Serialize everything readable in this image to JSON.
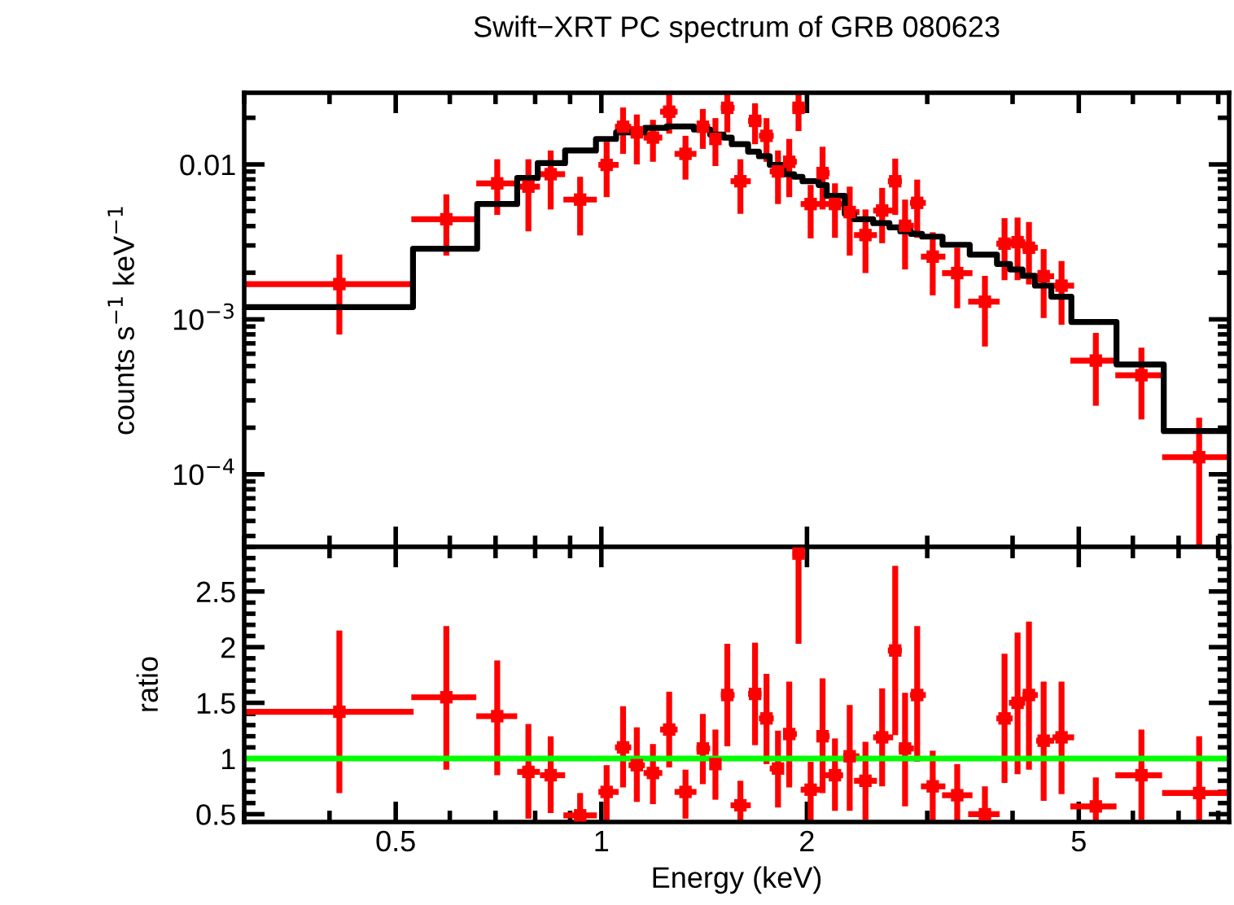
{
  "chart_data": [
    {
      "type": "scatter",
      "title": "Swift−XRT PC spectrum of GRB 080623",
      "ylabel": "counts s$^{−1}$ keV$^{−1}$",
      "log": "xy",
      "xlim": [
        0.3,
        8.3
      ],
      "ylim": [
        3.4e-05,
        0.029
      ],
      "xticks": [
        0.5,
        1,
        2,
        5
      ],
      "yticks": [
        {
          "value": 0.0001,
          "label": "10$^{−4}$"
        },
        {
          "value": 0.001,
          "label": "10$^{−3}$"
        },
        0.01
      ],
      "tick_labels": "y",
      "series": [
        {
          "color": "#ff0000",
          "marker": "square",
          "x": [
            0.4135,
            0.593,
            0.704,
            0.782,
            0.843,
            0.931,
            1.018,
            1.076,
            1.127,
            1.19,
            1.257,
            1.328,
            1.408,
            1.469,
            1.529,
            1.598,
            1.679,
            1.745,
            1.814,
            1.884,
            1.944,
            2.025,
            2.108,
            2.198,
            2.31,
            2.436,
            2.577,
            2.693,
            2.784,
            2.9,
            3.056,
            3.319,
            3.644,
            3.893,
            4.068,
            4.227,
            4.442,
            4.718,
            5.296,
            6.176,
            7.503
          ],
          "values": [
            0.00169,
            0.00443,
            0.00755,
            0.00719,
            0.00865,
            0.00593,
            0.00993,
            0.0175,
            0.0161,
            0.0149,
            0.0219,
            0.0117,
            0.0175,
            0.0146,
            0.0232,
            0.00779,
            0.0191,
            0.0153,
            0.00901,
            0.0104,
            0.0232,
            0.00555,
            0.00879,
            0.00555,
            0.00492,
            0.0035,
            0.00504,
            0.00779,
            0.00402,
            0.00565,
            0.00254,
            0.00199,
            0.0013,
            0.00308,
            0.00315,
            0.0029,
            0.0019,
            0.00165,
            0.000542,
            0.000436,
            0.000129
          ],
          "errors": [
            [
              0.000798,
              0.00262
            ],
            [
              0.00258,
              0.00641
            ],
            [
              0.00472,
              0.0108
            ],
            [
              0.0037,
              0.0108
            ],
            [
              0.00512,
              0.0123
            ],
            [
              0.00348,
              0.00832
            ],
            [
              0.00615,
              0.014
            ],
            [
              0.0117,
              0.0233
            ],
            [
              0.01,
              0.021
            ],
            [
              0.0104,
              0.0194
            ],
            [
              0.0158,
              0.0284
            ],
            [
              0.00798,
              0.0153
            ],
            [
              0.0126,
              0.0228
            ],
            [
              0.00976,
              0.0199
            ],
            [
              0.0161,
              0.029
            ],
            [
              0.0048,
              0.0108
            ],
            [
              0.0135,
              0.0248
            ],
            [
              0.0104,
              0.0199
            ],
            [
              0.00555,
              0.0123
            ],
            [
              0.00615,
              0.0146
            ],
            [
              0.0164,
              0.029
            ],
            [
              0.00333,
              0.00737
            ],
            [
              0.00512,
              0.013
            ],
            [
              0.00336,
              0.00755
            ],
            [
              0.00258,
              0.00719
            ],
            [
              0.00199,
              0.00512
            ],
            [
              0.0031,
              0.00706
            ],
            [
              0.00472,
              0.0109
            ],
            [
              0.0021,
              0.00593
            ],
            [
              0.00336,
              0.00798
            ],
            [
              0.00143,
              0.00365
            ],
            [
              0.00118,
              0.0029
            ],
            [
              0.000668,
              0.00191
            ],
            [
              0.00179,
              0.0045
            ],
            [
              0.00179,
              0.00454
            ],
            [
              0.00168,
              0.00425
            ],
            [
              0.00102,
              0.00284
            ],
            [
              0.000923,
              0.00238
            ],
            [
              0.000277,
              0.000818
            ],
            [
              0.000226,
              0.000657
            ],
            [
              3.4e-05,
              0.000232
            ]
          ],
          "xerrors": [
            [
              0.3,
              0.531
            ],
            [
              0.527,
              0.656
            ],
            [
              0.656,
              0.753
            ],
            [
              0.753,
              0.813
            ],
            [
              0.813,
              0.885
            ],
            [
              0.88,
              0.985
            ],
            [
              0.99,
              1.06
            ],
            [
              1.047,
              1.106
            ],
            [
              1.096,
              1.158
            ],
            [
              1.153,
              1.228
            ],
            [
              1.219,
              1.293
            ],
            [
              1.28,
              1.378
            ],
            [
              1.378,
              1.443
            ],
            [
              1.443,
              1.496
            ],
            [
              1.496,
              1.567
            ],
            [
              1.546,
              1.655
            ],
            [
              1.64,
              1.716
            ],
            [
              1.701,
              1.788
            ],
            [
              1.764,
              1.848
            ],
            [
              1.848,
              1.933
            ],
            [
              1.905,
              1.988
            ],
            [
              1.958,
              2.1
            ],
            [
              2.069,
              2.159
            ],
            [
              2.12,
              2.259
            ],
            [
              2.259,
              2.387
            ],
            [
              2.344,
              2.532
            ],
            [
              2.5,
              2.674
            ],
            [
              2.627,
              2.754
            ],
            [
              2.724,
              2.868
            ],
            [
              2.831,
              2.986
            ],
            [
              2.937,
              3.189
            ],
            [
              3.154,
              3.494
            ],
            [
              3.444,
              3.829
            ],
            [
              3.787,
              4.001
            ],
            [
              3.951,
              4.174
            ],
            [
              4.136,
              4.355
            ],
            [
              4.331,
              4.601
            ],
            [
              4.575,
              4.922
            ],
            [
              4.86,
              5.678
            ],
            [
              5.656,
              6.622
            ],
            [
              6.622,
              8.3
            ]
          ]
        },
        {
          "type": "step",
          "color": "#000000",
          "x": [
            0.3,
            0.53,
            0.658,
            0.753,
            0.807,
            0.885,
            0.982,
            1.051,
            1.158,
            1.246,
            1.366,
            1.443,
            1.51,
            1.552,
            1.64,
            1.701,
            1.764,
            1.848,
            1.916,
            1.97,
            2.08,
            2.138,
            2.272,
            2.344,
            2.5,
            2.641,
            2.739,
            2.841,
            2.948,
            3.159,
            3.462,
            3.795,
            3.966,
            4.136,
            4.314,
            4.558,
            4.877,
            5.678,
            6.659,
            8.3
          ],
          "values": [
            0.0012,
            0.00286,
            0.00555,
            0.00818,
            0.0102,
            0.0123,
            0.0146,
            0.0161,
            0.0172,
            0.0176,
            0.0168,
            0.0156,
            0.0149,
            0.0135,
            0.0121,
            0.0113,
            0.00993,
            0.00865,
            0.00832,
            0.00779,
            0.00737,
            0.00627,
            0.0048,
            0.00443,
            0.00418,
            0.00392,
            0.0037,
            0.00356,
            0.00342,
            0.00303,
            0.00262,
            0.00228,
            0.0021,
            0.00191,
            0.00165,
            0.0014,
            0.000962,
            0.000512,
            0.00019,
            0.00019
          ]
        }
      ]
    },
    {
      "type": "scatter",
      "ylabel": "ratio",
      "xlabel": "Energy (keV)",
      "log": "x",
      "xlim": [
        0.3,
        8.3
      ],
      "ylim": [
        0.43,
        2.9
      ],
      "xticks": [
        0.5,
        1,
        2,
        5
      ],
      "yticks": [
        0.5,
        1,
        1.5,
        2,
        2.5
      ],
      "ref_lines": [
        {
          "axis": "y",
          "value": 1,
          "color": "#00ff00"
        }
      ],
      "series": [
        {
          "color": "#ff0000",
          "marker": "square",
          "x": [
            0.4135,
            0.593,
            0.704,
            0.782,
            0.843,
            0.931,
            1.018,
            1.076,
            1.127,
            1.19,
            1.257,
            1.328,
            1.408,
            1.469,
            1.529,
            1.598,
            1.679,
            1.745,
            1.814,
            1.884,
            1.944,
            2.025,
            2.108,
            2.198,
            2.31,
            2.436,
            2.577,
            2.693,
            2.784,
            2.9,
            3.056,
            3.319,
            3.644,
            3.893,
            4.068,
            4.227,
            4.442,
            4.718,
            5.296,
            6.176,
            7.503
          ],
          "values": [
            1.42,
            1.55,
            1.38,
            0.88,
            0.85,
            0.49,
            0.7,
            1.1,
            0.94,
            0.87,
            1.26,
            0.7,
            1.09,
            0.95,
            1.57,
            0.58,
            1.58,
            1.36,
            0.91,
            1.22,
            2.84,
            0.72,
            1.2,
            0.85,
            1.02,
            0.8,
            1.19,
            1.97,
            1.09,
            1.57,
            0.75,
            0.67,
            0.5,
            1.36,
            1.5,
            1.57,
            1.16,
            1.19,
            0.57,
            0.85,
            0.69
          ],
          "errors": [
            [
              0.69,
              2.15
            ],
            [
              0.9,
              2.19
            ],
            [
              0.85,
              1.88
            ],
            [
              0.46,
              1.31
            ],
            [
              0.51,
              1.2
            ],
            [
              0.43,
              0.69
            ],
            [
              0.43,
              0.94
            ],
            [
              0.74,
              1.47
            ],
            [
              0.61,
              1.28
            ],
            [
              0.59,
              1.13
            ],
            [
              0.92,
              1.6
            ],
            [
              0.46,
              0.9
            ],
            [
              0.77,
              1.4
            ],
            [
              0.63,
              1.26
            ],
            [
              1.11,
              2.03
            ],
            [
              0.43,
              0.8
            ],
            [
              1.12,
              2.04
            ],
            [
              0.95,
              1.76
            ],
            [
              0.56,
              1.25
            ],
            [
              0.74,
              1.69
            ],
            [
              2.03,
              2.9
            ],
            [
              0.43,
              0.97
            ],
            [
              0.69,
              1.72
            ],
            [
              0.53,
              1.18
            ],
            [
              0.53,
              1.48
            ],
            [
              0.45,
              1.15
            ],
            [
              0.75,
              1.63
            ],
            [
              1.21,
              2.73
            ],
            [
              0.57,
              1.59
            ],
            [
              0.97,
              2.19
            ],
            [
              0.43,
              1.07
            ],
            [
              0.43,
              0.95
            ],
            [
              0.43,
              0.75
            ],
            [
              0.78,
              1.94
            ],
            [
              0.86,
              2.13
            ],
            [
              0.9,
              2.23
            ],
            [
              0.62,
              1.69
            ],
            [
              0.68,
              1.69
            ],
            [
              0.43,
              0.83
            ],
            [
              0.45,
              1.26
            ],
            [
              0.43,
              1.2
            ]
          ],
          "xerrors": [
            [
              0.3,
              0.531
            ],
            [
              0.527,
              0.656
            ],
            [
              0.656,
              0.753
            ],
            [
              0.753,
              0.813
            ],
            [
              0.813,
              0.885
            ],
            [
              0.88,
              0.985
            ],
            [
              0.99,
              1.06
            ],
            [
              1.047,
              1.106
            ],
            [
              1.096,
              1.158
            ],
            [
              1.153,
              1.228
            ],
            [
              1.219,
              1.293
            ],
            [
              1.28,
              1.378
            ],
            [
              1.378,
              1.443
            ],
            [
              1.443,
              1.496
            ],
            [
              1.496,
              1.567
            ],
            [
              1.546,
              1.655
            ],
            [
              1.64,
              1.716
            ],
            [
              1.701,
              1.788
            ],
            [
              1.764,
              1.848
            ],
            [
              1.848,
              1.933
            ],
            [
              1.905,
              1.988
            ],
            [
              1.958,
              2.1
            ],
            [
              2.069,
              2.159
            ],
            [
              2.12,
              2.259
            ],
            [
              2.259,
              2.387
            ],
            [
              2.344,
              2.532
            ],
            [
              2.5,
              2.674
            ],
            [
              2.627,
              2.754
            ],
            [
              2.724,
              2.868
            ],
            [
              2.831,
              2.986
            ],
            [
              2.937,
              3.189
            ],
            [
              3.154,
              3.494
            ],
            [
              3.444,
              3.829
            ],
            [
              3.787,
              4.001
            ],
            [
              3.951,
              4.174
            ],
            [
              4.136,
              4.355
            ],
            [
              4.331,
              4.601
            ],
            [
              4.575,
              4.922
            ],
            [
              4.86,
              5.678
            ],
            [
              5.656,
              6.622
            ],
            [
              6.622,
              8.3
            ]
          ]
        }
      ]
    }
  ]
}
